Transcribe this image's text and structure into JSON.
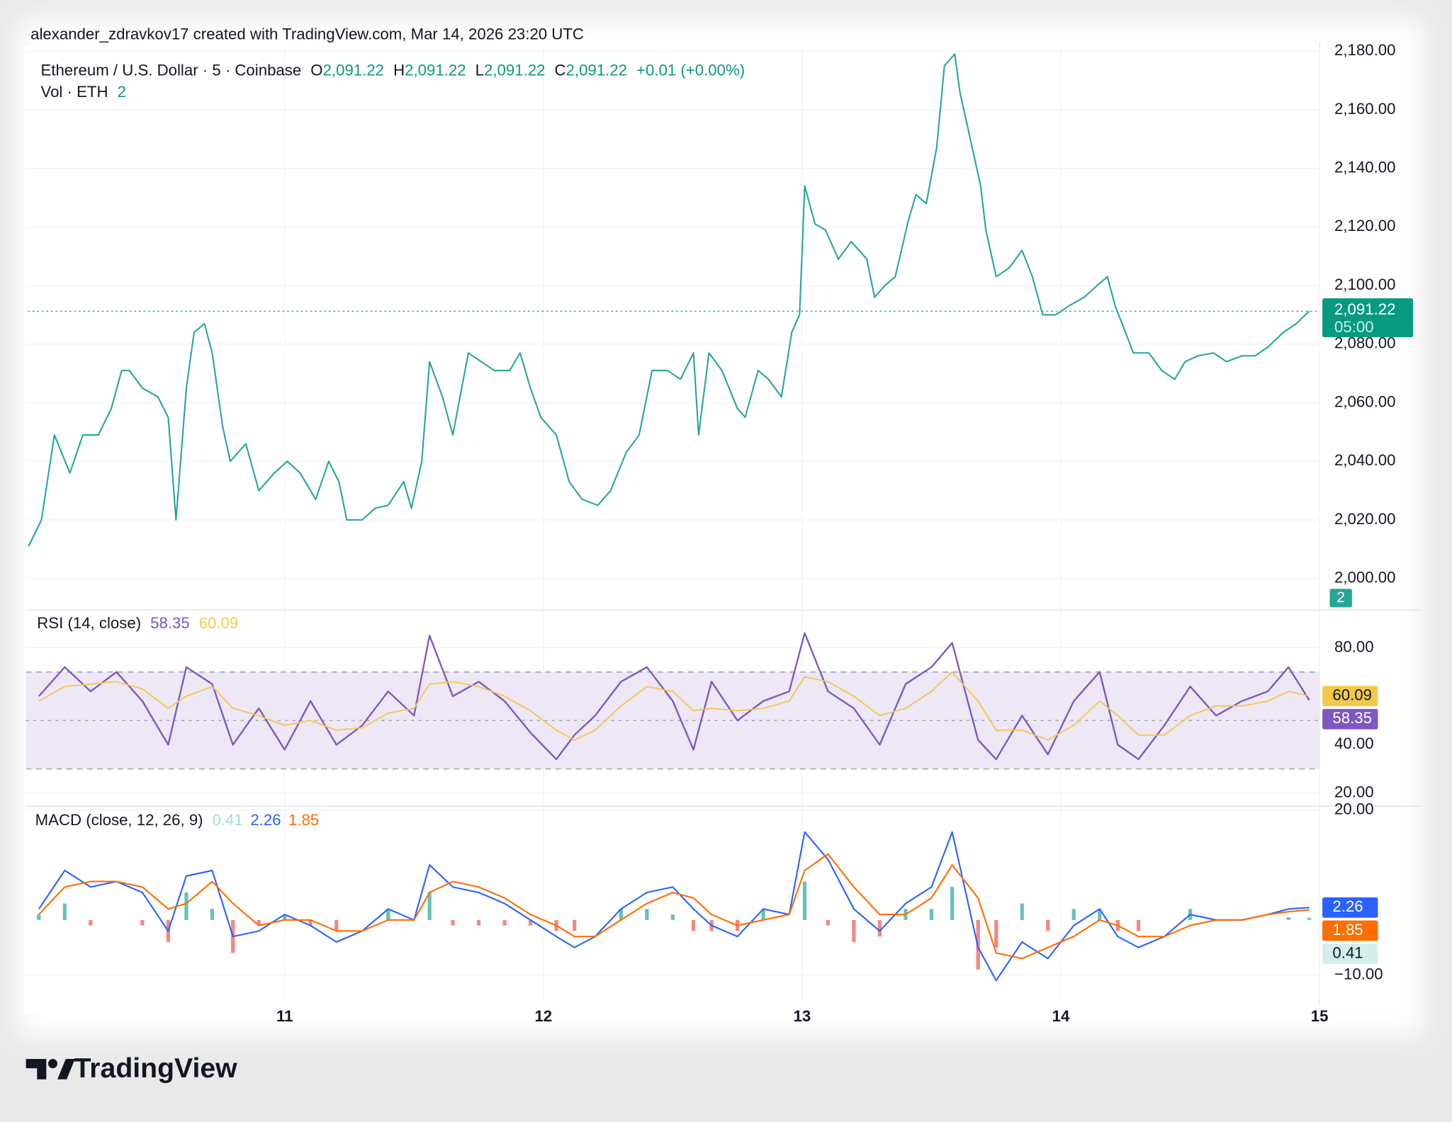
{
  "header": {
    "attribution": "alexander_zdravkov17 created with TradingView.com, Mar 14, 2026 23:20 UTC"
  },
  "footer": {
    "brand": "TradingView"
  },
  "chart_data": [
    {
      "type": "line",
      "title": "Ethereum / U.S. Dollar · 5 · Coinbase",
      "ohlc": [
        {
          "key": "O",
          "value": "2,091.22"
        },
        {
          "key": "H",
          "value": "2,091.22"
        },
        {
          "key": "L",
          "value": "2,091.22"
        },
        {
          "key": "C",
          "value": "2,091.22"
        }
      ],
      "change": "+0.01 (+0.00%)",
      "volume_label": "Vol · ETH",
      "volume": 2,
      "countdown": "05:00",
      "color": "#26a69a",
      "x": [
        10.01,
        10.06,
        10.11,
        10.17,
        10.22,
        10.28,
        10.33,
        10.37,
        10.4,
        10.45,
        10.51,
        10.55,
        10.58,
        10.62,
        10.65,
        10.69,
        10.72,
        10.76,
        10.79,
        10.85,
        10.9,
        10.96,
        11.01,
        11.06,
        11.12,
        11.17,
        11.21,
        11.24,
        11.3,
        11.35,
        11.4,
        11.46,
        11.49,
        11.53,
        11.56,
        11.61,
        11.65,
        11.71,
        11.76,
        11.81,
        11.87,
        11.91,
        11.95,
        11.99,
        12.05,
        12.1,
        12.15,
        12.21,
        12.26,
        12.32,
        12.37,
        12.42,
        12.48,
        12.53,
        12.58,
        12.6,
        12.64,
        12.69,
        12.75,
        12.78,
        12.83,
        12.87,
        12.92,
        12.96,
        12.99,
        13.01,
        13.05,
        13.09,
        13.14,
        13.19,
        13.25,
        13.28,
        13.32,
        13.36,
        13.41,
        13.44,
        13.48,
        13.52,
        13.55,
        13.59,
        13.61,
        13.65,
        13.69,
        13.71,
        13.75,
        13.8,
        13.85,
        13.89,
        13.93,
        13.98,
        14.03,
        14.09,
        14.14,
        14.18,
        14.21,
        14.25,
        14.28,
        14.34,
        14.39,
        14.44,
        14.48,
        14.53,
        14.59,
        14.64,
        14.7,
        14.75,
        14.8,
        14.86,
        14.91,
        14.96
      ],
      "values": [
        2011,
        2020,
        2049,
        2036,
        2049,
        2049,
        2058,
        2071,
        2071,
        2065,
        2062,
        2055,
        2020,
        2065,
        2084,
        2087,
        2077,
        2052,
        2040,
        2046,
        2030,
        2036,
        2040,
        2036,
        2027,
        2040,
        2033,
        2020,
        2020,
        2024,
        2025,
        2033,
        2024,
        2040,
        2074,
        2062,
        2049,
        2077,
        2074,
        2071,
        2071,
        2077,
        2065,
        2055,
        2049,
        2033,
        2027,
        2025,
        2030,
        2043,
        2049,
        2071,
        2071,
        2068,
        2077,
        2049,
        2077,
        2071,
        2058,
        2055,
        2071,
        2068,
        2062,
        2084,
        2090,
        2134,
        2121,
        2119,
        2109,
        2115,
        2109,
        2096,
        2100,
        2103,
        2122,
        2131,
        2128,
        2147,
        2175,
        2179,
        2166,
        2150,
        2134,
        2119,
        2103,
        2106,
        2112,
        2103,
        2090,
        2090,
        2093,
        2096,
        2100,
        2103,
        2093,
        2084,
        2077,
        2077,
        2071,
        2068,
        2074,
        2076,
        2077,
        2074,
        2076,
        2076,
        2079,
        2084,
        2087,
        2091.22
      ],
      "xlim": [
        10,
        15
      ],
      "xticks": [
        11,
        12,
        13,
        14,
        15
      ],
      "ylim": [
        1990.5,
        2181
      ],
      "yticks": [
        {
          "value": 2000,
          "label": "2,000.00"
        },
        {
          "value": 2020,
          "label": "2,020.00"
        },
        {
          "value": 2040,
          "label": "2,040.00"
        },
        {
          "value": 2060,
          "label": "2,060.00"
        },
        {
          "value": 2080,
          "label": "2,080.00"
        },
        {
          "value": 2100,
          "label": "2,100.00"
        },
        {
          "value": 2120,
          "label": "2,120.00"
        },
        {
          "value": 2140,
          "label": "2,140.00"
        },
        {
          "value": 2160,
          "label": "2,160.00"
        },
        {
          "value": 2180,
          "label": "2,180.00"
        }
      ],
      "grid": true,
      "last_price_line": true
    },
    {
      "type": "line",
      "title": "RSI (14, close)",
      "x": [
        10.05,
        10.15,
        10.25,
        10.35,
        10.45,
        10.55,
        10.62,
        10.72,
        10.8,
        10.9,
        11.0,
        11.1,
        11.2,
        11.3,
        11.4,
        11.5,
        11.56,
        11.65,
        11.75,
        11.85,
        11.95,
        12.05,
        12.12,
        12.2,
        12.3,
        12.4,
        12.5,
        12.58,
        12.65,
        12.75,
        12.85,
        12.95,
        13.01,
        13.1,
        13.2,
        13.3,
        13.4,
        13.5,
        13.58,
        13.68,
        13.75,
        13.85,
        13.95,
        14.05,
        14.15,
        14.22,
        14.3,
        14.4,
        14.5,
        14.6,
        14.7,
        14.8,
        14.88,
        14.96
      ],
      "series": [
        {
          "color": "#7e57c2",
          "values": [
            60,
            72,
            62,
            70,
            58,
            40,
            72,
            65,
            40,
            55,
            38,
            58,
            40,
            48,
            62,
            52,
            85,
            60,
            66,
            58,
            45,
            34,
            44,
            52,
            66,
            72,
            58,
            38,
            66,
            50,
            58,
            62,
            86,
            62,
            55,
            40,
            65,
            72,
            82,
            42,
            34,
            52,
            36,
            58,
            70,
            40,
            34,
            48,
            64,
            52,
            58,
            62,
            72,
            58.35
          ]
        },
        {
          "color": "#f2c94c",
          "values": [
            58,
            64,
            65,
            66,
            63,
            55,
            60,
            64,
            55,
            52,
            48,
            50,
            46,
            47,
            53,
            55,
            65,
            66,
            64,
            60,
            54,
            46,
            42,
            46,
            56,
            64,
            62,
            54,
            55,
            54,
            55,
            58,
            68,
            66,
            60,
            52,
            55,
            62,
            70,
            58,
            46,
            46,
            42,
            48,
            58,
            52,
            44,
            44,
            52,
            56,
            56,
            58,
            62,
            60.09
          ]
        }
      ],
      "xlim": [
        10,
        15
      ],
      "ylim": [
        15,
        94
      ],
      "yticks": [
        {
          "value": 20,
          "label": "20.00"
        },
        {
          "value": 40,
          "label": "40.00"
        },
        {
          "value": 60,
          "label": "60.00"
        },
        {
          "value": 80,
          "label": "80.00"
        }
      ],
      "bands": [
        30,
        50,
        70
      ],
      "band_fill": "#ede7f6"
    },
    {
      "type": "macd",
      "title": "MACD (close, 12, 26, 9)",
      "x": [
        10.05,
        10.15,
        10.25,
        10.35,
        10.45,
        10.55,
        10.62,
        10.72,
        10.8,
        10.9,
        11.0,
        11.1,
        11.2,
        11.3,
        11.4,
        11.5,
        11.56,
        11.65,
        11.75,
        11.85,
        11.95,
        12.05,
        12.12,
        12.2,
        12.3,
        12.4,
        12.5,
        12.58,
        12.65,
        12.75,
        12.85,
        12.95,
        13.01,
        13.1,
        13.2,
        13.3,
        13.4,
        13.5,
        13.58,
        13.68,
        13.75,
        13.85,
        13.95,
        14.05,
        14.15,
        14.22,
        14.3,
        14.4,
        14.5,
        14.6,
        14.7,
        14.8,
        14.88,
        14.96
      ],
      "histogram": {
        "color": "#a7dcd4",
        "up_color": "#26a69a",
        "down_color": "#ef5350",
        "values": [
          1,
          3,
          -1,
          0,
          -1,
          -4,
          5,
          2,
          -6,
          -1,
          1,
          -1,
          -2,
          0,
          2,
          0,
          5,
          -1,
          -1,
          -1,
          -1,
          -2,
          -2,
          0,
          2,
          2,
          1,
          -2,
          -2,
          -2,
          2,
          0,
          7,
          -1,
          -4,
          -3,
          2,
          2,
          6,
          -9,
          -5,
          3,
          -2,
          2,
          2,
          -2,
          -2,
          0,
          2,
          0,
          0,
          0,
          0.5,
          0.41
        ]
      },
      "series": [
        {
          "color": "#2962ff",
          "values": [
            2,
            9,
            6,
            7,
            5,
            -2,
            8,
            9,
            -3,
            -2,
            1,
            -1,
            -4,
            -2,
            2,
            0,
            10,
            6,
            5,
            3,
            0,
            -3,
            -5,
            -3,
            2,
            5,
            6,
            2,
            -1,
            -3,
            2,
            1,
            16,
            11,
            2,
            -2,
            3,
            6,
            16,
            -5,
            -11,
            -4,
            -7,
            -1,
            2,
            -3,
            -5,
            -3,
            1,
            0,
            0,
            1,
            2,
            2.26
          ]
        },
        {
          "color": "#ff6d00",
          "values": [
            1,
            6,
            7,
            7,
            6,
            2,
            3,
            7,
            3,
            -1,
            0,
            0,
            -2,
            -2,
            0,
            0,
            5,
            7,
            6,
            4,
            1,
            -1,
            -3,
            -3,
            0,
            3,
            5,
            4,
            1,
            -1,
            0,
            1,
            9,
            12,
            6,
            1,
            1,
            4,
            10,
            4,
            -6,
            -7,
            -5,
            -3,
            0,
            -1,
            -3,
            -3,
            -1,
            0,
            0,
            1,
            1.5,
            1.85
          ]
        }
      ],
      "xlim": [
        10,
        15
      ],
      "ylim": [
        -14.5,
        20
      ],
      "yticks": [
        {
          "value": -10,
          "label": "−10.00"
        },
        {
          "value": 20,
          "label": "20.00"
        }
      ]
    }
  ]
}
